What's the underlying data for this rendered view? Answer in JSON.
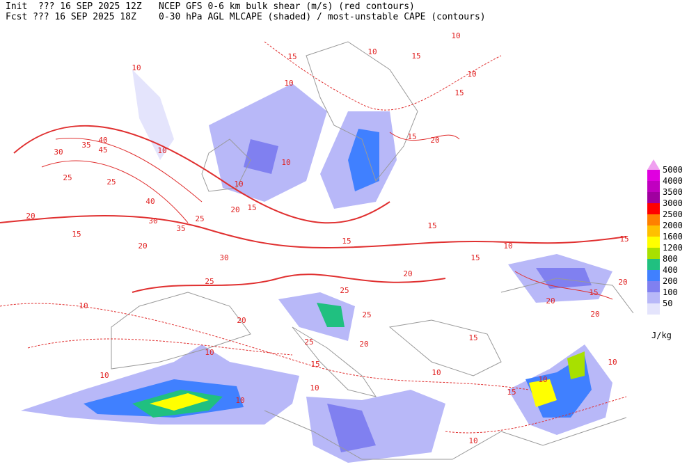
{
  "header": {
    "init": "Init  ??? 16 SEP 2025 12Z",
    "title": "NCEP GFS 0-6 km bulk shear (m/s) (red contours)",
    "fcst": "Fcst ??? 16 SEP 2025 18Z",
    "subtitle": "0-30 hPa AGL MLCAPE (shaded) / most-unstable CAPE (contours)"
  },
  "legend": {
    "unit": "J/kg",
    "levels": [
      {
        "value": 5000,
        "color": "#e000e0"
      },
      {
        "value": 4000,
        "color": "#c000c0"
      },
      {
        "value": 3500,
        "color": "#a000a0"
      },
      {
        "value": 3000,
        "color": "#ff0000"
      },
      {
        "value": 2500,
        "color": "#ff8000"
      },
      {
        "value": 2000,
        "color": "#ffc000"
      },
      {
        "value": 1600,
        "color": "#ffff00"
      },
      {
        "value": 1200,
        "color": "#a8e000"
      },
      {
        "value": 800,
        "color": "#20c080"
      },
      {
        "value": 400,
        "color": "#4080ff"
      },
      {
        "value": 200,
        "color": "#8080f0"
      },
      {
        "value": 100,
        "color": "#b8b8f8"
      },
      {
        "value": 50,
        "color": "#e4e4fc"
      }
    ]
  },
  "contour_labels": [
    10,
    15,
    10,
    10,
    15,
    10,
    10,
    15,
    20,
    15,
    10,
    10,
    10,
    15,
    20,
    25,
    25,
    30,
    35,
    40,
    45,
    40,
    30,
    35,
    25,
    20,
    15,
    20,
    30,
    25,
    20,
    10,
    15,
    15,
    10,
    15,
    15,
    20,
    20,
    15,
    20,
    25,
    20,
    25,
    15,
    10,
    10,
    10,
    10,
    10,
    15,
    10,
    10,
    15,
    25,
    20,
    10
  ]
}
